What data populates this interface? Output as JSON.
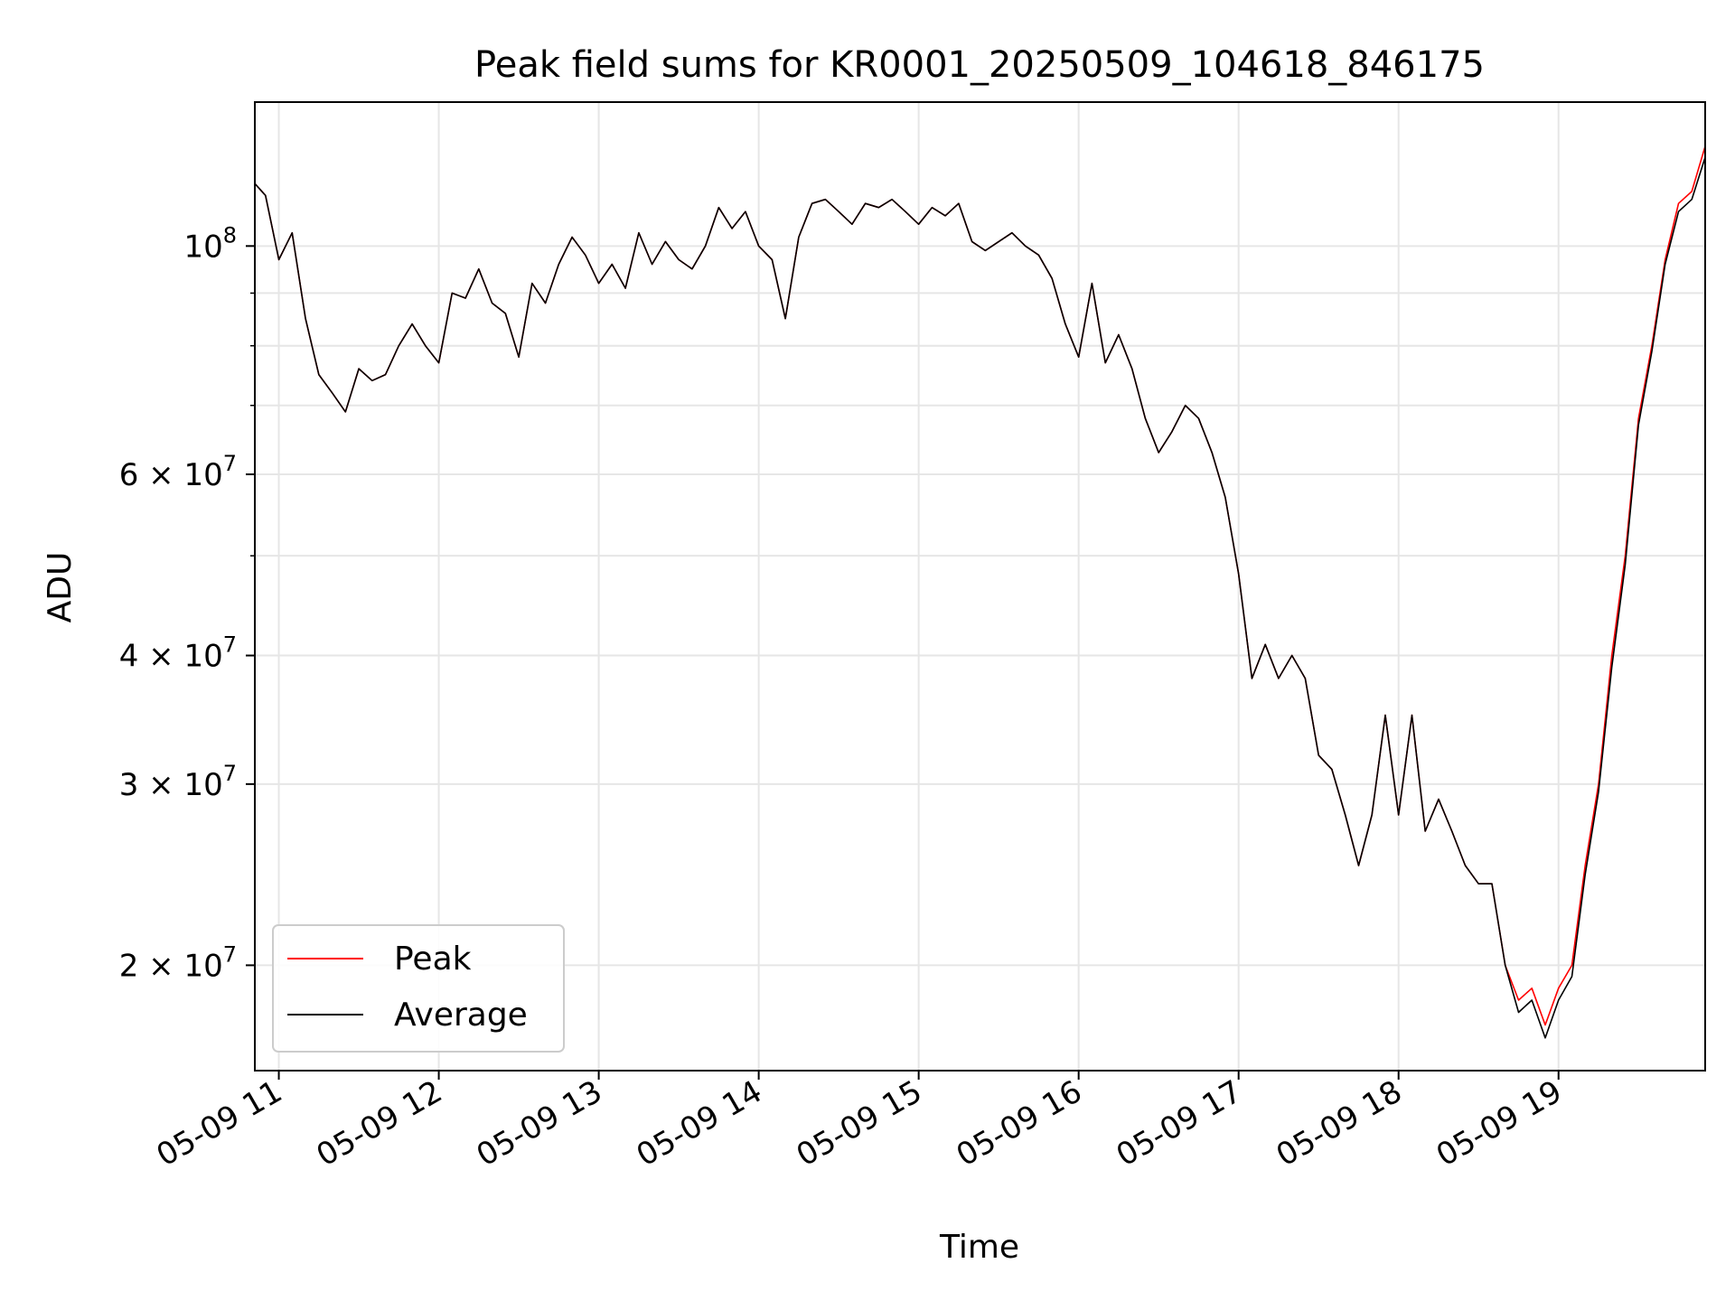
{
  "chart_data": {
    "type": "line",
    "title": "Peak field sums for KR0001_20250509_104618_846175",
    "xlabel": "Time",
    "ylabel": "ADU",
    "x_range": [
      "2025-05-09 10:51",
      "2025-05-09 19:55"
    ],
    "x_ticks": [
      "05-09 11",
      "05-09 12",
      "05-09 13",
      "05-09 14",
      "05-09 15",
      "05-09 16",
      "05-09 17",
      "05-09 18",
      "05-09 19"
    ],
    "y_scale": "log",
    "ylim": [
      15800000,
      138000000
    ],
    "y_ticks": [
      {
        "value": 20000000,
        "mant": "2",
        "exp": "7"
      },
      {
        "value": 30000000,
        "mant": "3",
        "exp": "7"
      },
      {
        "value": 40000000,
        "mant": "4",
        "exp": "7"
      },
      {
        "value": 60000000,
        "mant": "6",
        "exp": "7"
      },
      {
        "value": 100000000,
        "mant": "",
        "exp": "8"
      }
    ],
    "grid": true,
    "legend_position": "lower-left",
    "x": [
      "10:51",
      "10:55",
      "11:00",
      "11:05",
      "11:10",
      "11:15",
      "11:20",
      "11:25",
      "11:30",
      "11:35",
      "11:40",
      "11:45",
      "11:50",
      "11:55",
      "12:00",
      "12:05",
      "12:10",
      "12:15",
      "12:20",
      "12:25",
      "12:30",
      "12:35",
      "12:40",
      "12:45",
      "12:50",
      "12:55",
      "13:00",
      "13:05",
      "13:10",
      "13:15",
      "13:20",
      "13:25",
      "13:30",
      "13:35",
      "13:40",
      "13:45",
      "13:50",
      "13:55",
      "14:00",
      "14:05",
      "14:10",
      "14:15",
      "14:20",
      "14:25",
      "14:30",
      "14:35",
      "14:40",
      "14:45",
      "14:50",
      "14:55",
      "15:00",
      "15:05",
      "15:10",
      "15:15",
      "15:20",
      "15:25",
      "15:30",
      "15:35",
      "15:40",
      "15:45",
      "15:50",
      "15:55",
      "16:00",
      "16:05",
      "16:10",
      "16:15",
      "16:20",
      "16:25",
      "16:30",
      "16:35",
      "16:40",
      "16:45",
      "16:50",
      "16:55",
      "17:00",
      "17:05",
      "17:10",
      "17:15",
      "17:20",
      "17:25",
      "17:30",
      "17:35",
      "17:40",
      "17:45",
      "17:50",
      "17:55",
      "18:00",
      "18:05",
      "18:10",
      "18:15",
      "18:20",
      "18:25",
      "18:30",
      "18:35",
      "18:40",
      "18:45",
      "18:50",
      "18:55",
      "19:00",
      "19:05",
      "19:10",
      "19:15",
      "19:20",
      "19:25",
      "19:30",
      "19:35",
      "19:40",
      "19:45",
      "19:50",
      "19:55"
    ],
    "series": [
      {
        "name": "Peak",
        "color": "#ff0000",
        "values": [
          115000000,
          112000000,
          97000000,
          103000000,
          85000000,
          75000000,
          72000000,
          69000000,
          76000000,
          74000000,
          75000000,
          80000000,
          84000000,
          80000000,
          77000000,
          90000000,
          89000000,
          95000000,
          88000000,
          86000000,
          78000000,
          92000000,
          88000000,
          96000000,
          102000000,
          98000000,
          92000000,
          96000000,
          91000000,
          103000000,
          96000000,
          101000000,
          97000000,
          95000000,
          100000000,
          109000000,
          104000000,
          108000000,
          100000000,
          97000000,
          85000000,
          102000000,
          110000000,
          111000000,
          108000000,
          105000000,
          110000000,
          109000000,
          111000000,
          108000000,
          105000000,
          109000000,
          107000000,
          110000000,
          101000000,
          99000000,
          101000000,
          103000000,
          100000000,
          98000000,
          93000000,
          84000000,
          78000000,
          92000000,
          77000000,
          82000000,
          76000000,
          68000000,
          63000000,
          66000000,
          70000000,
          68000000,
          63000000,
          57000000,
          48000000,
          38000000,
          41000000,
          38000000,
          40000000,
          38000000,
          32000000,
          31000000,
          28000000,
          25000000,
          28000000,
          35000000,
          28000000,
          35000000,
          27000000,
          29000000,
          27000000,
          25000000,
          24000000,
          24000000,
          20000000,
          18500000,
          19000000,
          17500000,
          19000000,
          20000000,
          25000000,
          30000000,
          40000000,
          50000000,
          68000000,
          80000000,
          97000000,
          110000000,
          113000000,
          125000000
        ]
      },
      {
        "name": "Average",
        "color": "#000000",
        "values": [
          115000000,
          112000000,
          97000000,
          103000000,
          85000000,
          75000000,
          72000000,
          69000000,
          76000000,
          74000000,
          75000000,
          80000000,
          84000000,
          80000000,
          77000000,
          90000000,
          89000000,
          95000000,
          88000000,
          86000000,
          78000000,
          92000000,
          88000000,
          96000000,
          102000000,
          98000000,
          92000000,
          96000000,
          91000000,
          103000000,
          96000000,
          101000000,
          97000000,
          95000000,
          100000000,
          109000000,
          104000000,
          108000000,
          100000000,
          97000000,
          85000000,
          102000000,
          110000000,
          111000000,
          108000000,
          105000000,
          110000000,
          109000000,
          111000000,
          108000000,
          105000000,
          109000000,
          107000000,
          110000000,
          101000000,
          99000000,
          101000000,
          103000000,
          100000000,
          98000000,
          93000000,
          84000000,
          78000000,
          92000000,
          77000000,
          82000000,
          76000000,
          68000000,
          63000000,
          66000000,
          70000000,
          68000000,
          63000000,
          57000000,
          48000000,
          38000000,
          41000000,
          38000000,
          40000000,
          38000000,
          32000000,
          31000000,
          28000000,
          25000000,
          28000000,
          35000000,
          28000000,
          35000000,
          27000000,
          29000000,
          27000000,
          25000000,
          24000000,
          24000000,
          20000000,
          18000000,
          18500000,
          17000000,
          18500000,
          19500000,
          24500000,
          29500000,
          39000000,
          49000000,
          67000000,
          79000000,
          96000000,
          108000000,
          111000000,
          122000000
        ]
      }
    ]
  }
}
